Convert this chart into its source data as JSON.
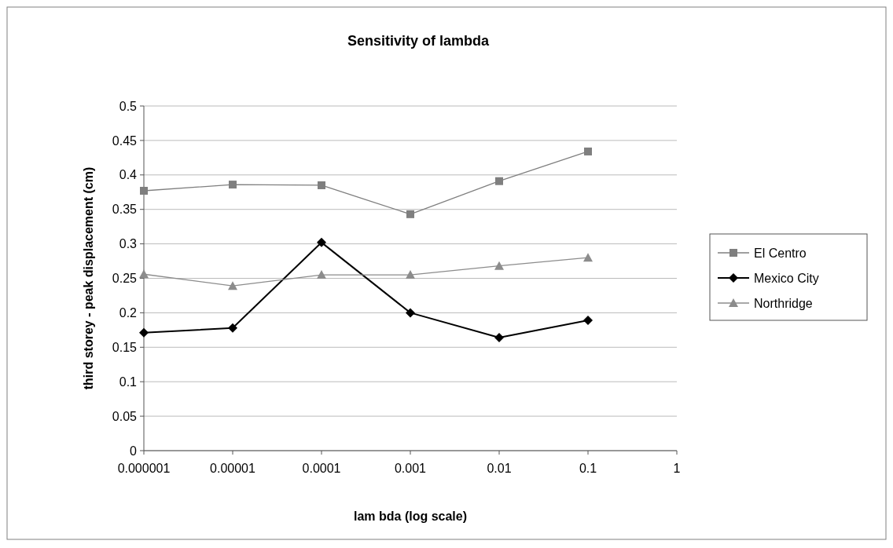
{
  "chart_data": {
    "type": "line",
    "title": "Sensitivity of lambda",
    "xlabel": "lam bda (log scale)",
    "ylabel": "third storey - peak displacement (cm)",
    "log": "x",
    "x": [
      1e-06,
      1e-05,
      0.0001,
      0.001,
      0.01,
      0.1
    ],
    "xlim": [
      1e-06,
      1
    ],
    "xticks": [
      {
        "value": 1e-06,
        "label": "0.000001"
      },
      {
        "value": 1e-05,
        "label": "0.00001"
      },
      {
        "value": 0.0001,
        "label": "0.0001"
      },
      {
        "value": 0.001,
        "label": "0.001"
      },
      {
        "value": 0.01,
        "label": "0.01"
      },
      {
        "value": 0.1,
        "label": "0.1"
      },
      {
        "value": 1,
        "label": "1"
      }
    ],
    "ylim": [
      0,
      0.5
    ],
    "yticks": [
      0,
      0.05,
      0.1,
      0.15,
      0.2,
      0.25,
      0.3,
      0.35,
      0.4,
      0.45,
      0.5
    ],
    "grid": "y",
    "legend": "right",
    "series": [
      {
        "name": "El Centro",
        "color": "#7f7f7f",
        "marker": "square",
        "values": [
          0.377,
          0.386,
          0.385,
          0.343,
          0.391,
          0.434
        ]
      },
      {
        "name": "Mexico City",
        "color": "#000000",
        "marker": "diamond",
        "values": [
          0.171,
          0.178,
          0.302,
          0.2,
          0.164,
          0.189
        ]
      },
      {
        "name": "Northridge",
        "color": "#8c8c8c",
        "marker": "triangle",
        "values": [
          0.256,
          0.239,
          0.255,
          0.255,
          0.268,
          0.28
        ]
      }
    ]
  }
}
